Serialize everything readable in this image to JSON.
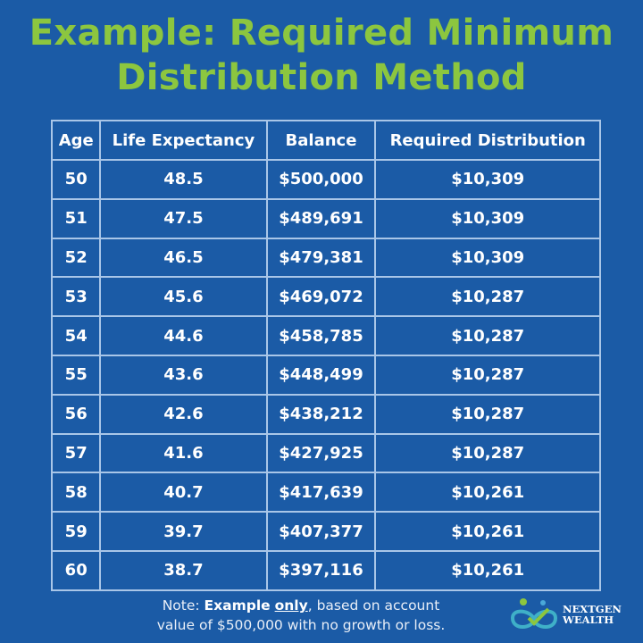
{
  "title": "Example: Required Minimum Distribution Method",
  "colors": {
    "background": "#1b5ba6",
    "title": "#8cc63f",
    "grid": "#a9c6e8"
  },
  "table": {
    "headers": [
      "Age",
      "Life Expectancy",
      "Balance",
      "Required Distribution"
    ],
    "rows": [
      [
        "50",
        "48.5",
        "$500,000",
        "$10,309"
      ],
      [
        "51",
        "47.5",
        "$489,691",
        "$10,309"
      ],
      [
        "52",
        "46.5",
        "$479,381",
        "$10,309"
      ],
      [
        "53",
        "45.6",
        "$469,072",
        "$10,287"
      ],
      [
        "54",
        "44.6",
        "$458,785",
        "$10,287"
      ],
      [
        "55",
        "43.6",
        "$448,499",
        "$10,287"
      ],
      [
        "56",
        "42.6",
        "$438,212",
        "$10,287"
      ],
      [
        "57",
        "41.6",
        "$427,925",
        "$10,287"
      ],
      [
        "58",
        "40.7",
        "$417,639",
        "$10,261"
      ],
      [
        "59",
        "39.7",
        "$407,377",
        "$10,261"
      ],
      [
        "60",
        "38.7",
        "$397,116",
        "$10,261"
      ]
    ]
  },
  "note": {
    "prefix": "Note: ",
    "bold": "Example",
    "underlined": "only",
    "line1_rest": ", based on account",
    "line2": "value of $500,000 with no growth or loss."
  },
  "logo": {
    "line1": "NEXTGEN",
    "line2": "WEALTH"
  }
}
